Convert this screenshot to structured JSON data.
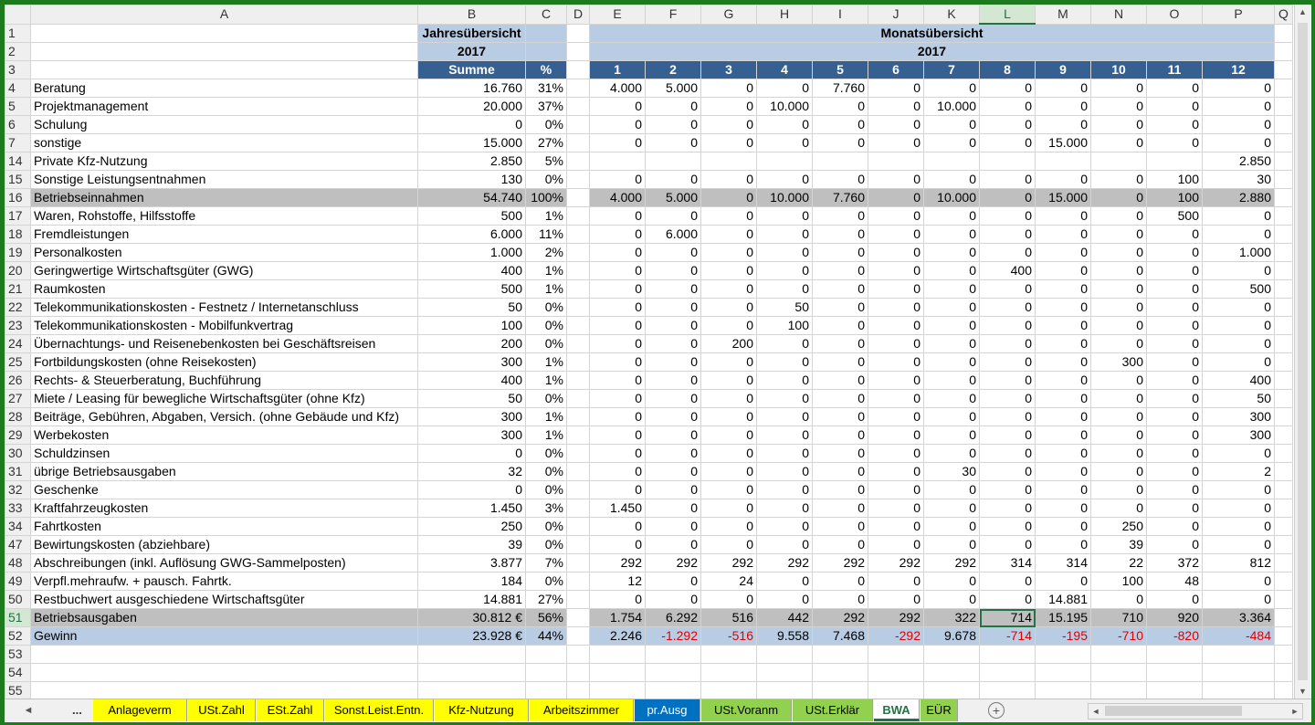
{
  "columns": [
    "A",
    "B",
    "C",
    "D",
    "E",
    "F",
    "G",
    "H",
    "I",
    "J",
    "K",
    "L",
    "M",
    "N",
    "O",
    "P",
    "Q"
  ],
  "selected_column": "L",
  "header": {
    "jahres_title": "Jahresübersicht",
    "jahres_year": "2017",
    "monat_title": "Monatsübersicht",
    "monat_year": "2017",
    "summe_label": "Summe",
    "pct_label": "%",
    "months": [
      "1",
      "2",
      "3",
      "4",
      "5",
      "6",
      "7",
      "8",
      "9",
      "10",
      "11",
      "12"
    ]
  },
  "rows": [
    {
      "num": "4",
      "label": "Beratung",
      "sum": "16.760",
      "pct": "31%",
      "m": [
        "4.000",
        "5.000",
        "0",
        "0",
        "7.760",
        "0",
        "0",
        "0",
        "0",
        "0",
        "0",
        "0"
      ]
    },
    {
      "num": "5",
      "label": "Projektmanagement",
      "sum": "20.000",
      "pct": "37%",
      "m": [
        "0",
        "0",
        "0",
        "10.000",
        "0",
        "0",
        "10.000",
        "0",
        "0",
        "0",
        "0",
        "0"
      ]
    },
    {
      "num": "6",
      "label": "Schulung",
      "sum": "0",
      "pct": "0%",
      "m": [
        "0",
        "0",
        "0",
        "0",
        "0",
        "0",
        "0",
        "0",
        "0",
        "0",
        "0",
        "0"
      ]
    },
    {
      "num": "7",
      "label": "sonstige",
      "sum": "15.000",
      "pct": "27%",
      "m": [
        "0",
        "0",
        "0",
        "0",
        "0",
        "0",
        "0",
        "0",
        "15.000",
        "0",
        "0",
        "0"
      ]
    },
    {
      "num": "14",
      "label": "Private Kfz-Nutzung",
      "sum": "2.850",
      "pct": "5%",
      "m": [
        "",
        "",
        "",
        "",
        "",
        "",
        "",
        "",
        "",
        "",
        "",
        "2.850"
      ]
    },
    {
      "num": "15",
      "label": "Sonstige Leistungsentnahmen",
      "sum": "130",
      "pct": "0%",
      "m": [
        "0",
        "0",
        "0",
        "0",
        "0",
        "0",
        "0",
        "0",
        "0",
        "0",
        "100",
        "30"
      ]
    },
    {
      "num": "16",
      "label": "Betriebseinnahmen",
      "sum": "54.740",
      "pct": "100%",
      "m": [
        "4.000",
        "5.000",
        "0",
        "10.000",
        "7.760",
        "0",
        "10.000",
        "0",
        "15.000",
        "0",
        "100",
        "2.880"
      ],
      "style": "gray"
    },
    {
      "num": "17",
      "label": "Waren, Rohstoffe, Hilfsstoffe",
      "sum": "500",
      "pct": "1%",
      "m": [
        "0",
        "0",
        "0",
        "0",
        "0",
        "0",
        "0",
        "0",
        "0",
        "0",
        "500",
        "0"
      ]
    },
    {
      "num": "18",
      "label": "Fremdleistungen",
      "sum": "6.000",
      "pct": "11%",
      "m": [
        "0",
        "6.000",
        "0",
        "0",
        "0",
        "0",
        "0",
        "0",
        "0",
        "0",
        "0",
        "0"
      ]
    },
    {
      "num": "19",
      "label": "Personalkosten",
      "sum": "1.000",
      "pct": "2%",
      "m": [
        "0",
        "0",
        "0",
        "0",
        "0",
        "0",
        "0",
        "0",
        "0",
        "0",
        "0",
        "1.000"
      ]
    },
    {
      "num": "20",
      "label": "Geringwertige Wirtschaftsgüter (GWG)",
      "sum": "400",
      "pct": "1%",
      "m": [
        "0",
        "0",
        "0",
        "0",
        "0",
        "0",
        "0",
        "400",
        "0",
        "0",
        "0",
        "0"
      ]
    },
    {
      "num": "21",
      "label": "Raumkosten",
      "sum": "500",
      "pct": "1%",
      "m": [
        "0",
        "0",
        "0",
        "0",
        "0",
        "0",
        "0",
        "0",
        "0",
        "0",
        "0",
        "500"
      ]
    },
    {
      "num": "22",
      "label": "Telekommunikationskosten - Festnetz / Internetanschluss",
      "sum": "50",
      "pct": "0%",
      "m": [
        "0",
        "0",
        "0",
        "50",
        "0",
        "0",
        "0",
        "0",
        "0",
        "0",
        "0",
        "0"
      ]
    },
    {
      "num": "23",
      "label": "Telekommunikationskosten - Mobilfunkvertrag",
      "sum": "100",
      "pct": "0%",
      "m": [
        "0",
        "0",
        "0",
        "100",
        "0",
        "0",
        "0",
        "0",
        "0",
        "0",
        "0",
        "0"
      ]
    },
    {
      "num": "24",
      "label": "Übernachtungs- und Reisenebenkosten bei Geschäftsreisen",
      "sum": "200",
      "pct": "0%",
      "m": [
        "0",
        "0",
        "200",
        "0",
        "0",
        "0",
        "0",
        "0",
        "0",
        "0",
        "0",
        "0"
      ]
    },
    {
      "num": "25",
      "label": "Fortbildungskosten (ohne Reisekosten)",
      "sum": "300",
      "pct": "1%",
      "m": [
        "0",
        "0",
        "0",
        "0",
        "0",
        "0",
        "0",
        "0",
        "0",
        "300",
        "0",
        "0"
      ]
    },
    {
      "num": "26",
      "label": "Rechts- & Steuerberatung, Buchführung",
      "sum": "400",
      "pct": "1%",
      "m": [
        "0",
        "0",
        "0",
        "0",
        "0",
        "0",
        "0",
        "0",
        "0",
        "0",
        "0",
        "400"
      ]
    },
    {
      "num": "27",
      "label": "Miete / Leasing für bewegliche Wirtschaftsgüter (ohne Kfz)",
      "sum": "50",
      "pct": "0%",
      "m": [
        "0",
        "0",
        "0",
        "0",
        "0",
        "0",
        "0",
        "0",
        "0",
        "0",
        "0",
        "50"
      ]
    },
    {
      "num": "28",
      "label": "Beiträge, Gebühren, Abgaben, Versich. (ohne Gebäude und Kfz)",
      "sum": "300",
      "pct": "1%",
      "m": [
        "0",
        "0",
        "0",
        "0",
        "0",
        "0",
        "0",
        "0",
        "0",
        "0",
        "0",
        "300"
      ]
    },
    {
      "num": "29",
      "label": "Werbekosten",
      "sum": "300",
      "pct": "1%",
      "m": [
        "0",
        "0",
        "0",
        "0",
        "0",
        "0",
        "0",
        "0",
        "0",
        "0",
        "0",
        "300"
      ]
    },
    {
      "num": "30",
      "label": "Schuldzinsen",
      "sum": "0",
      "pct": "0%",
      "m": [
        "0",
        "0",
        "0",
        "0",
        "0",
        "0",
        "0",
        "0",
        "0",
        "0",
        "0",
        "0"
      ]
    },
    {
      "num": "31",
      "label": "übrige Betriebsausgaben",
      "sum": "32",
      "pct": "0%",
      "m": [
        "0",
        "0",
        "0",
        "0",
        "0",
        "0",
        "30",
        "0",
        "0",
        "0",
        "0",
        "2"
      ]
    },
    {
      "num": "32",
      "label": "Geschenke",
      "sum": "0",
      "pct": "0%",
      "m": [
        "0",
        "0",
        "0",
        "0",
        "0",
        "0",
        "0",
        "0",
        "0",
        "0",
        "0",
        "0"
      ]
    },
    {
      "num": "33",
      "label": "Kraftfahrzeugkosten",
      "sum": "1.450",
      "pct": "3%",
      "m": [
        "1.450",
        "0",
        "0",
        "0",
        "0",
        "0",
        "0",
        "0",
        "0",
        "0",
        "0",
        "0"
      ]
    },
    {
      "num": "34",
      "label": "Fahrtkosten",
      "sum": "250",
      "pct": "0%",
      "m": [
        "0",
        "0",
        "0",
        "0",
        "0",
        "0",
        "0",
        "0",
        "0",
        "250",
        "0",
        "0"
      ]
    },
    {
      "num": "47",
      "label": "Bewirtungskosten (abziehbare)",
      "sum": "39",
      "pct": "0%",
      "m": [
        "0",
        "0",
        "0",
        "0",
        "0",
        "0",
        "0",
        "0",
        "0",
        "39",
        "0",
        "0"
      ]
    },
    {
      "num": "48",
      "label": "Abschreibungen (inkl. Auflösung GWG-Sammelposten)",
      "sum": "3.877",
      "pct": "7%",
      "m": [
        "292",
        "292",
        "292",
        "292",
        "292",
        "292",
        "292",
        "314",
        "314",
        "22",
        "372",
        "812"
      ]
    },
    {
      "num": "49",
      "label": "Verpfl.mehraufw. + pausch. Fahrtk.",
      "sum": "184",
      "pct": "0%",
      "m": [
        "12",
        "0",
        "24",
        "0",
        "0",
        "0",
        "0",
        "0",
        "0",
        "100",
        "48",
        "0"
      ]
    },
    {
      "num": "50",
      "label": "Restbuchwert ausgeschiedene Wirtschaftsgüter",
      "sum": "14.881",
      "pct": "27%",
      "m": [
        "0",
        "0",
        "0",
        "0",
        "0",
        "0",
        "0",
        "0",
        "14.881",
        "0",
        "0",
        "0"
      ]
    },
    {
      "num": "51",
      "label": "Betriebsausgaben",
      "sum": "30.812 €",
      "pct": "56%",
      "m": [
        "1.754",
        "6.292",
        "516",
        "442",
        "292",
        "292",
        "322",
        "714",
        "15.195",
        "710",
        "920",
        "3.364"
      ],
      "style": "gray"
    },
    {
      "num": "52",
      "label": "Gewinn",
      "sum": "23.928 €",
      "pct": "44%",
      "m": [
        "2.246",
        "-1.292",
        "-516",
        "9.558",
        "7.468",
        "-292",
        "9.678",
        "-714",
        "-195",
        "-710",
        "-820",
        "-484"
      ],
      "style": "blue"
    }
  ],
  "empty_rows": [
    "53",
    "54",
    "55"
  ],
  "top_rows": [
    "1",
    "2",
    "3"
  ],
  "tabs": [
    {
      "label": "Anlageverm",
      "color": "#ffff00",
      "width": 103
    },
    {
      "label": "USt.Zahl",
      "color": "#ffff00",
      "width": 74
    },
    {
      "label": "ESt.Zahl",
      "color": "#ffff00",
      "width": 74
    },
    {
      "label": "Sonst.Leist.Entn.",
      "color": "#ffff00",
      "width": 119
    },
    {
      "label": "Kfz-Nutzung",
      "color": "#ffff00",
      "width": 103
    },
    {
      "label": "Arbeitszimmer",
      "color": "#ffff00",
      "width": 114
    },
    {
      "label": "pr.Ausg",
      "color": "#0070c0",
      "text": "#ffffff",
      "width": 72
    },
    {
      "label": "USt.Voranm",
      "color": "#92d050",
      "width": 99
    },
    {
      "label": "USt.Erklär",
      "color": "#92d050",
      "width": 88
    },
    {
      "label": "BWA",
      "color": "#ffffff",
      "width": 50,
      "active": true
    },
    {
      "label": "EÜR",
      "color": "#92d050",
      "width": 41
    }
  ],
  "tab_nav": {
    "prev": "◄",
    "more": "...",
    "next": "►",
    "add": "+"
  },
  "selected_cell": {
    "row": "51",
    "col": "L"
  }
}
